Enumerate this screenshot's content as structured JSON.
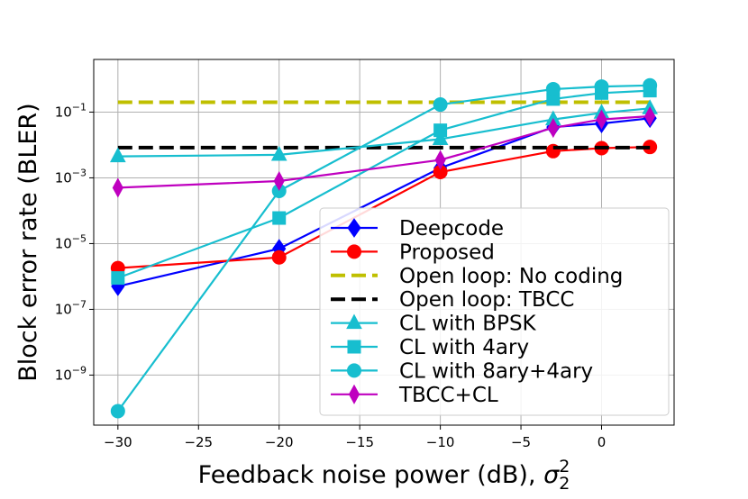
{
  "chart_data": {
    "type": "line",
    "y_scale": "log",
    "grid": true,
    "legend_position": "lower-right",
    "xlabel": "Feedback noise power (dB), ",
    "xlabel_sigma": "σ",
    "xlabel_sup": "2",
    "xlabel_sub": "2",
    "ylabel": "Block error rate (BLER)",
    "xlim": [
      -31.5,
      4.5
    ],
    "ylim": [
      3e-11,
      4.0
    ],
    "x_ticks": [
      -30,
      -25,
      -20,
      -15,
      -10,
      -5,
      0
    ],
    "x_tick_labels": [
      "−30",
      "−25",
      "−20",
      "−15",
      "−10",
      "−5",
      "0"
    ],
    "y_ticks": [
      1e-09,
      1e-07,
      1e-05,
      0.001,
      0.1
    ],
    "y_tick_labels": [
      {
        "base": "10",
        "exp": "−9"
      },
      {
        "base": "10",
        "exp": "−7"
      },
      {
        "base": "10",
        "exp": "−5"
      },
      {
        "base": "10",
        "exp": "−3"
      },
      {
        "base": "10",
        "exp": "−1"
      }
    ],
    "series": [
      {
        "name": "Deepcode",
        "color": "#0000ff",
        "marker": "diamond",
        "line": "solid",
        "x": [
          -30,
          -20,
          -10,
          -3,
          0,
          3
        ],
        "y": [
          5e-07,
          7e-06,
          0.002,
          0.035,
          0.045,
          0.065
        ]
      },
      {
        "name": "Proposed",
        "color": "#ff0000",
        "marker": "circle",
        "line": "solid",
        "x": [
          -30,
          -20,
          -10,
          -3,
          0,
          3
        ],
        "y": [
          1.8e-06,
          3.8e-06,
          0.0015,
          0.0065,
          0.008,
          0.0087
        ]
      },
      {
        "name": "Open loop: No coding",
        "color": "#bfbf00",
        "marker": "none",
        "line": "dashed",
        "x": [
          -30,
          3
        ],
        "y": [
          0.2,
          0.2
        ]
      },
      {
        "name": "Open loop: TBCC",
        "color": "#000000",
        "marker": "none",
        "line": "dashed",
        "x": [
          -30,
          3
        ],
        "y": [
          0.0083,
          0.0083
        ]
      },
      {
        "name": "CL with BPSK",
        "color": "#17becf",
        "marker": "triangle",
        "line": "solid",
        "x": [
          -30,
          -20,
          -10,
          -3,
          0,
          3
        ],
        "y": [
          0.0045,
          0.005,
          0.015,
          0.06,
          0.095,
          0.13
        ]
      },
      {
        "name": "CL with 4ary",
        "color": "#17becf",
        "marker": "square",
        "line": "solid",
        "x": [
          -30,
          -20,
          -10,
          -3,
          0,
          3
        ],
        "y": [
          9e-07,
          6e-05,
          0.028,
          0.25,
          0.38,
          0.45
        ]
      },
      {
        "name": "CL with 8ary+4ary",
        "color": "#17becf",
        "marker": "circle",
        "line": "solid",
        "x": [
          -30,
          -20,
          -10,
          -3,
          0,
          3
        ],
        "y": [
          8e-11,
          0.0004,
          0.17,
          0.5,
          0.6,
          0.65
        ]
      },
      {
        "name": "TBCC+CL",
        "color": "#bf00bf",
        "marker": "thin-diamond",
        "line": "solid",
        "x": [
          -30,
          -20,
          -10,
          -3,
          0,
          3
        ],
        "y": [
          0.0005,
          0.0008,
          0.0035,
          0.033,
          0.06,
          0.075
        ]
      }
    ]
  }
}
